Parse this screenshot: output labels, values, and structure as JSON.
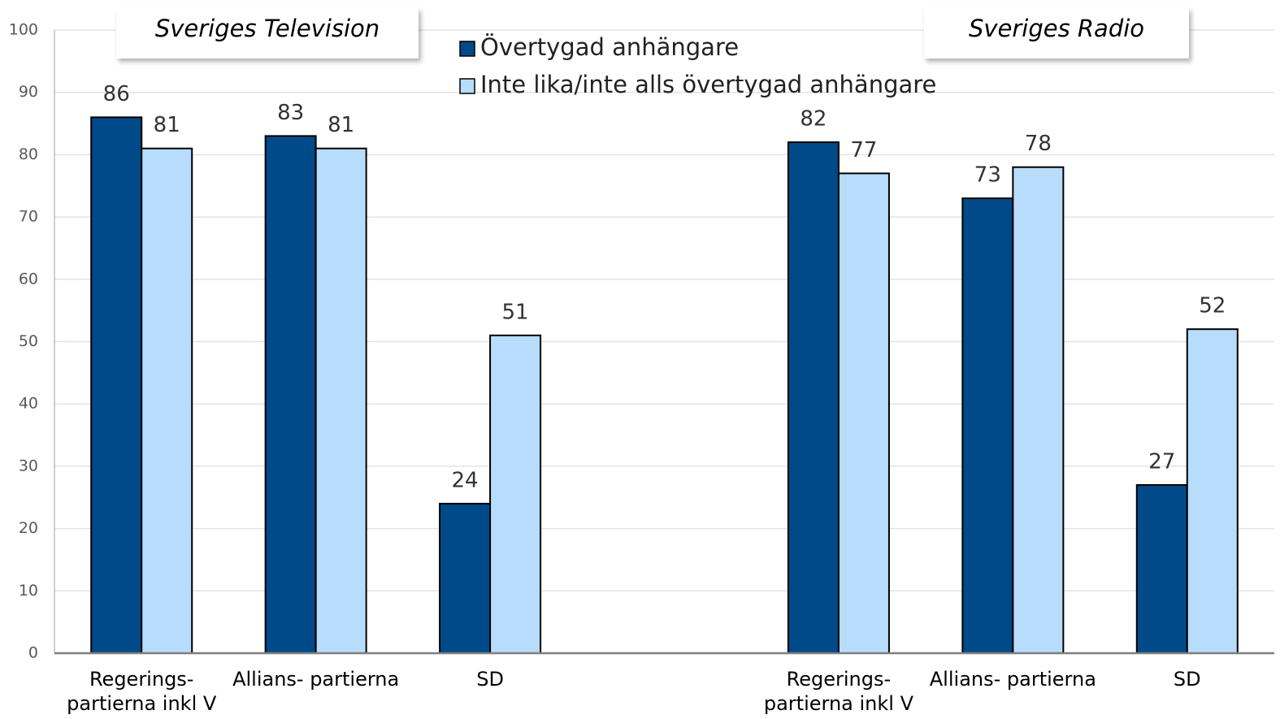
{
  "chart_data": {
    "type": "bar",
    "categories": [
      "Regerings-\npartierna inkl V",
      "Allians- partierna",
      "SD",
      null,
      "Regerings-\npartierna inkl V",
      "Allians- partierna",
      "SD"
    ],
    "series": [
      {
        "name": "Övertygad anhängare",
        "color": "#004a8a",
        "values": [
          86,
          83,
          24,
          null,
          82,
          73,
          27
        ]
      },
      {
        "name": "Inte lika/inte alls övertygad anhängare",
        "color": "#b8dcfb",
        "values": [
          81,
          81,
          51,
          null,
          77,
          78,
          52
        ]
      }
    ],
    "annotations": [
      "Sveriges Television",
      "Sveriges Radio"
    ],
    "ylim": [
      0,
      100
    ],
    "yticks": [
      0,
      10,
      20,
      30,
      40,
      50,
      60,
      70,
      80,
      90,
      100
    ],
    "grid": true
  }
}
